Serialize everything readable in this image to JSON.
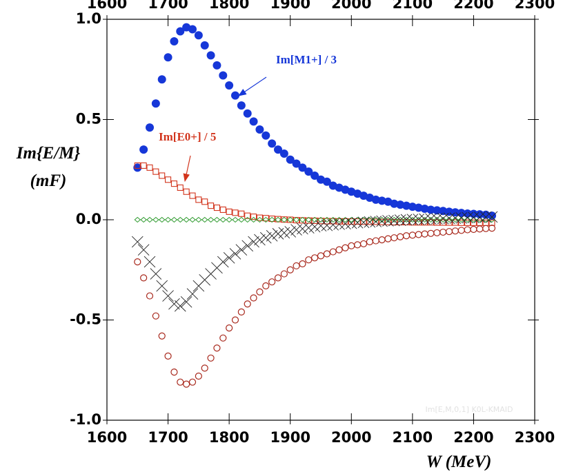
{
  "chart_data": {
    "type": "scatter",
    "ylabel": [
      "Im{E/M}",
      "(mF)"
    ],
    "xlabel": "W  (MeV)",
    "annotations": [
      "Im[M1+] / 3",
      "Im[E0+] / 5",
      "Im[E,M,0,1] K0L-KMAID"
    ],
    "xlim": [
      1600,
      2300
    ],
    "xticks": [
      1600,
      1700,
      1800,
      1900,
      2000,
      2100,
      2200,
      2300
    ],
    "ylim": [
      -1.0,
      1.0
    ],
    "yticks": [
      {
        "value": -1.0,
        "label": "-1.0"
      },
      {
        "value": -0.5,
        "label": "-0.5"
      },
      {
        "value": 0,
        "label": "0.0"
      },
      {
        "value": 0.5,
        "label": "0.5"
      },
      {
        "value": 1.0,
        "label": "1.0"
      }
    ],
    "x": [
      1650,
      1660,
      1670,
      1680,
      1690,
      1700,
      1710,
      1720,
      1730,
      1740,
      1750,
      1760,
      1770,
      1780,
      1790,
      1800,
      1810,
      1820,
      1830,
      1840,
      1850,
      1860,
      1870,
      1880,
      1890,
      1900,
      1910,
      1920,
      1930,
      1940,
      1950,
      1960,
      1970,
      1980,
      1990,
      2000,
      2010,
      2020,
      2030,
      2040,
      2050,
      2060,
      2070,
      2080,
      2090,
      2100,
      2110,
      2120,
      2130,
      2140,
      2150,
      2160,
      2170,
      2180,
      2190,
      2200,
      2210,
      2220,
      2230
    ],
    "series": [
      {
        "name": "Im[M1+] / 3",
        "color": "#1637d8",
        "marker": "filled-circle",
        "values": [
          0.26,
          0.35,
          0.46,
          0.58,
          0.7,
          0.81,
          0.89,
          0.94,
          0.96,
          0.95,
          0.92,
          0.87,
          0.82,
          0.77,
          0.72,
          0.67,
          0.62,
          0.57,
          0.53,
          0.49,
          0.45,
          0.42,
          0.38,
          0.35,
          0.33,
          0.3,
          0.28,
          0.26,
          0.24,
          0.22,
          0.2,
          0.19,
          0.17,
          0.16,
          0.15,
          0.14,
          0.13,
          0.12,
          0.11,
          0.1,
          0.095,
          0.09,
          0.08,
          0.075,
          0.07,
          0.065,
          0.06,
          0.055,
          0.05,
          0.047,
          0.044,
          0.04,
          0.037,
          0.034,
          0.031,
          0.029,
          0.027,
          0.025,
          0.02
        ]
      },
      {
        "name": "Im[E0+] / 5",
        "color": "#d2341c",
        "marker": "square",
        "values": [
          0.27,
          0.27,
          0.26,
          0.24,
          0.22,
          0.2,
          0.18,
          0.16,
          0.14,
          0.12,
          0.1,
          0.09,
          0.07,
          0.06,
          0.05,
          0.04,
          0.035,
          0.03,
          0.02,
          0.015,
          0.01,
          0.008,
          0.005,
          0.003,
          0.001,
          0,
          -0.002,
          -0.003,
          -0.004,
          -0.005,
          -0.006,
          -0.007,
          -0.007,
          -0.008,
          -0.008,
          -0.009,
          -0.009,
          -0.01,
          -0.01,
          -0.01,
          -0.011,
          -0.011,
          -0.012,
          -0.012,
          -0.012,
          -0.013,
          -0.013,
          -0.013,
          -0.013,
          -0.014,
          -0.014,
          -0.014,
          -0.014,
          -0.015,
          -0.015,
          -0.015,
          -0.015,
          -0.015,
          -0.015
        ]
      },
      {
        "color": "#2e9a2e",
        "marker": "diamond",
        "values": [
          0,
          0,
          0,
          0,
          0,
          0,
          0,
          0,
          0,
          0,
          0,
          0,
          0,
          0,
          0,
          0,
          0,
          0,
          0,
          0,
          0,
          0,
          0,
          0,
          0,
          0,
          0,
          0,
          0,
          0,
          0,
          0,
          0,
          0,
          0,
          0,
          0,
          0,
          0,
          0,
          0,
          0,
          0,
          0,
          0,
          0,
          0,
          0,
          0,
          0,
          0,
          0,
          0,
          0,
          0,
          0,
          0,
          0,
          0
        ]
      },
      {
        "color": "#222222",
        "marker": "x",
        "values": [
          -0.11,
          -0.15,
          -0.21,
          -0.27,
          -0.33,
          -0.38,
          -0.42,
          -0.43,
          -0.41,
          -0.37,
          -0.33,
          -0.3,
          -0.27,
          -0.24,
          -0.21,
          -0.19,
          -0.17,
          -0.15,
          -0.13,
          -0.11,
          -0.1,
          -0.09,
          -0.08,
          -0.07,
          -0.065,
          -0.06,
          -0.05,
          -0.045,
          -0.04,
          -0.035,
          -0.03,
          -0.028,
          -0.025,
          -0.022,
          -0.02,
          -0.018,
          -0.015,
          -0.013,
          -0.011,
          -0.009,
          -0.007,
          -0.005,
          -0.004,
          -0.002,
          0,
          0.001,
          0.002,
          0.003,
          0.004,
          0.005,
          0.006,
          0.007,
          0.008,
          0.009,
          0.01,
          0.011,
          0.012,
          0.013,
          0.014
        ]
      },
      {
        "color": "#a8281c",
        "marker": "open-circle",
        "values": [
          -0.21,
          -0.29,
          -0.38,
          -0.48,
          -0.58,
          -0.68,
          -0.76,
          -0.81,
          -0.82,
          -0.81,
          -0.78,
          -0.74,
          -0.69,
          -0.64,
          -0.59,
          -0.54,
          -0.5,
          -0.46,
          -0.42,
          -0.39,
          -0.36,
          -0.33,
          -0.31,
          -0.29,
          -0.27,
          -0.25,
          -0.23,
          -0.22,
          -0.2,
          -0.19,
          -0.18,
          -0.17,
          -0.16,
          -0.15,
          -0.14,
          -0.13,
          -0.125,
          -0.12,
          -0.11,
          -0.105,
          -0.1,
          -0.095,
          -0.09,
          -0.085,
          -0.08,
          -0.077,
          -0.074,
          -0.071,
          -0.068,
          -0.065,
          -0.062,
          -0.059,
          -0.056,
          -0.053,
          -0.05,
          -0.048,
          -0.046,
          -0.044,
          -0.042
        ]
      }
    ]
  }
}
